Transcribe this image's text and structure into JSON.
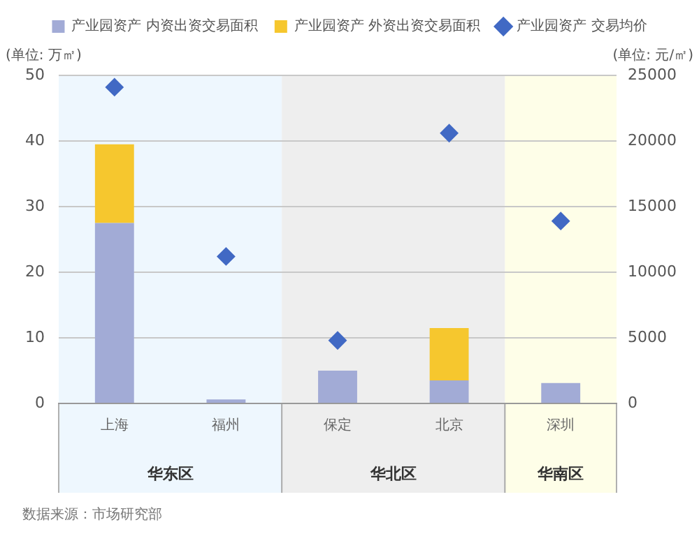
{
  "chart_data": {
    "type": "bar",
    "stacked": true,
    "ylabel": "(单位: 万㎡)",
    "y2label": "(单位: 元/㎡)",
    "categories": [
      "上海",
      "福州",
      "保定",
      "北京",
      "深圳"
    ],
    "series": [
      {
        "name": "产业园资产 内资出资交易面积",
        "color": "#a2abd6",
        "values": [
          27.5,
          0.6,
          5.0,
          3.5,
          3.1
        ]
      },
      {
        "name": "产业园资产 外资出资交易面积",
        "color": "#f6c72e",
        "values": [
          12.0,
          null,
          null,
          8.0,
          null
        ]
      },
      {
        "name": "产业园资产 交易均价",
        "type": "scatter",
        "axis": "y2",
        "marker": "diamond",
        "color": "#4169c4",
        "values": [
          24100,
          11200,
          4800,
          20600,
          13900
        ]
      }
    ],
    "ylim": [
      0,
      50
    ],
    "yticks": [
      0,
      10,
      20,
      30,
      40,
      50
    ],
    "y2lim": [
      0,
      25000
    ],
    "y2ticks": [
      0,
      5000,
      10000,
      15000,
      20000,
      25000
    ],
    "grid": "y",
    "legend": "top",
    "bands": [
      {
        "axis": "x",
        "from": "上海",
        "to": "福州",
        "label": "华东区",
        "color": "#eef7fe"
      },
      {
        "axis": "x",
        "from": "保定",
        "to": "北京",
        "label": "华北区",
        "color": "#eeeeee"
      },
      {
        "axis": "x",
        "from": "深圳",
        "to": "深圳",
        "label": "华南区",
        "color": "#fefee8"
      }
    ],
    "annotations": [
      "数据来源：市场研究部"
    ]
  }
}
